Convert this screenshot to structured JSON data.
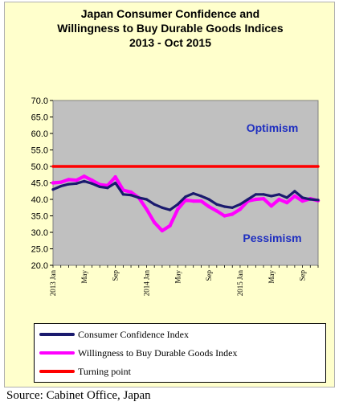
{
  "chart_data": {
    "type": "line",
    "title": [
      "Japan Consumer Confidence and",
      "Willingness to Buy Durable Goods Indices",
      "2013 - Oct 2015"
    ],
    "ylim": [
      20,
      70
    ],
    "yticks": [
      "70.0",
      "65.0",
      "60.0",
      "55.0",
      "50.0",
      "45.0",
      "40.0",
      "35.0",
      "30.0",
      "25.0",
      "20.0"
    ],
    "xlim": [
      0,
      34
    ],
    "xticks": [
      {
        "x": 0,
        "label": "2013 Jan"
      },
      {
        "x": 4,
        "label": "May"
      },
      {
        "x": 8,
        "label": "Sep"
      },
      {
        "x": 12,
        "label": "2014 Jan"
      },
      {
        "x": 16,
        "label": "May"
      },
      {
        "x": 20,
        "label": "Sep"
      },
      {
        "x": 24,
        "label": "2015 Jan"
      },
      {
        "x": 28,
        "label": "May"
      },
      {
        "x": 32,
        "label": "Sep"
      }
    ],
    "grid": false,
    "legend_position": "bottom",
    "series": [
      {
        "name": "Consumer Confidence Index",
        "color": "#1a1a6e",
        "x": [
          0,
          1,
          2,
          3,
          4,
          5,
          6,
          7,
          8,
          9,
          10,
          11,
          12,
          13,
          14,
          15,
          16,
          17,
          18,
          19,
          20,
          21,
          22,
          23,
          24,
          25,
          26,
          27,
          28,
          29,
          30,
          31,
          32,
          33,
          34
        ],
        "values": [
          43.0,
          44.0,
          44.6,
          44.8,
          45.5,
          44.8,
          43.8,
          43.5,
          45.0,
          41.5,
          41.3,
          40.5,
          40.0,
          38.5,
          37.5,
          36.8,
          38.5,
          40.8,
          41.8,
          41.0,
          40.0,
          38.5,
          37.8,
          37.5,
          38.5,
          40.0,
          41.5,
          41.5,
          41.0,
          41.5,
          40.5,
          42.5,
          40.5,
          40.0,
          39.8
        ]
      },
      {
        "name": "Willingness to Buy Durable Goods Index",
        "color": "#ff00ff",
        "x": [
          0,
          1,
          2,
          3,
          4,
          5,
          6,
          7,
          8,
          9,
          10,
          11,
          12,
          13,
          14,
          15,
          16,
          17,
          18,
          19,
          20,
          21,
          22,
          23,
          24,
          25,
          26,
          27,
          28,
          29,
          30,
          31,
          32,
          33,
          34
        ],
        "values": [
          45.0,
          45.2,
          46.0,
          45.8,
          47.0,
          45.8,
          44.5,
          44.2,
          46.8,
          42.8,
          42.2,
          40.5,
          37.0,
          33.0,
          30.5,
          32.0,
          37.0,
          39.8,
          39.5,
          39.5,
          37.8,
          36.5,
          35.0,
          35.5,
          37.0,
          39.5,
          40.0,
          40.2,
          38.0,
          40.0,
          39.0,
          41.0,
          39.5,
          40.2,
          39.6
        ]
      },
      {
        "name": "Turning point",
        "color": "#ff0000",
        "x": [
          0,
          34
        ],
        "values": [
          50.0,
          50.0
        ]
      }
    ],
    "annotations": [
      {
        "text": "Optimism",
        "color": "#1f2fc0"
      },
      {
        "text": "Pessimism",
        "color": "#1f2fc0"
      }
    ]
  },
  "source": "Source: Cabinet Office, Japan"
}
